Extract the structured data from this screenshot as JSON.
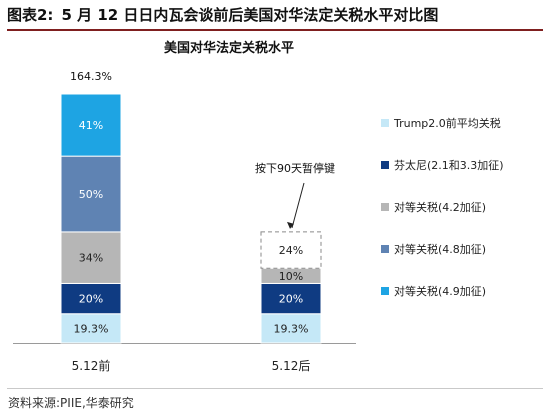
{
  "figure": {
    "label": "图表2:",
    "title": "5 月 12 日日内瓦会谈前后美国对华法定关税水平对比图"
  },
  "source": "资料来源:PIIE,华泰研究",
  "chart_data": {
    "type": "bar",
    "stacked": true,
    "title": "美国对华法定关税水平",
    "categories": [
      "5.12前",
      "5.12后"
    ],
    "series": [
      {
        "name": "Trump2.0前平均关税",
        "values": [
          19.3,
          19.3
        ],
        "labels": [
          "19.3%",
          "19.3%"
        ],
        "color": "#c5e8f7",
        "label_color": "#222222"
      },
      {
        "name": "芬太尼(2.1和3.3加征)",
        "values": [
          20,
          20
        ],
        "labels": [
          "20%",
          "20%"
        ],
        "color": "#0f3b82",
        "label_color": "#ffffff"
      },
      {
        "name": "对等关税(4.2加征)",
        "values": [
          34,
          10
        ],
        "labels": [
          "34%",
          "10%"
        ],
        "color": "#b6b6b6",
        "label_color": "#222222"
      },
      {
        "name": "对等关税(4.8加征)",
        "values": [
          50,
          0
        ],
        "labels": [
          "50%",
          ""
        ],
        "color": "#5f83b3",
        "label_color": "#ffffff"
      },
      {
        "name": "对等关税(4.9加征)",
        "values": [
          41,
          0
        ],
        "labels": [
          "41%",
          ""
        ],
        "color": "#1ea4e3",
        "label_color": "#ffffff"
      }
    ],
    "totals": [
      "164.3%",
      ""
    ],
    "suspended": {
      "value": 24,
      "label": "24%",
      "category": "5.12后",
      "annotation": "按下90天暂停键"
    },
    "ylim": [
      0,
      164.3
    ],
    "legend_position": "right",
    "grid": false
  }
}
